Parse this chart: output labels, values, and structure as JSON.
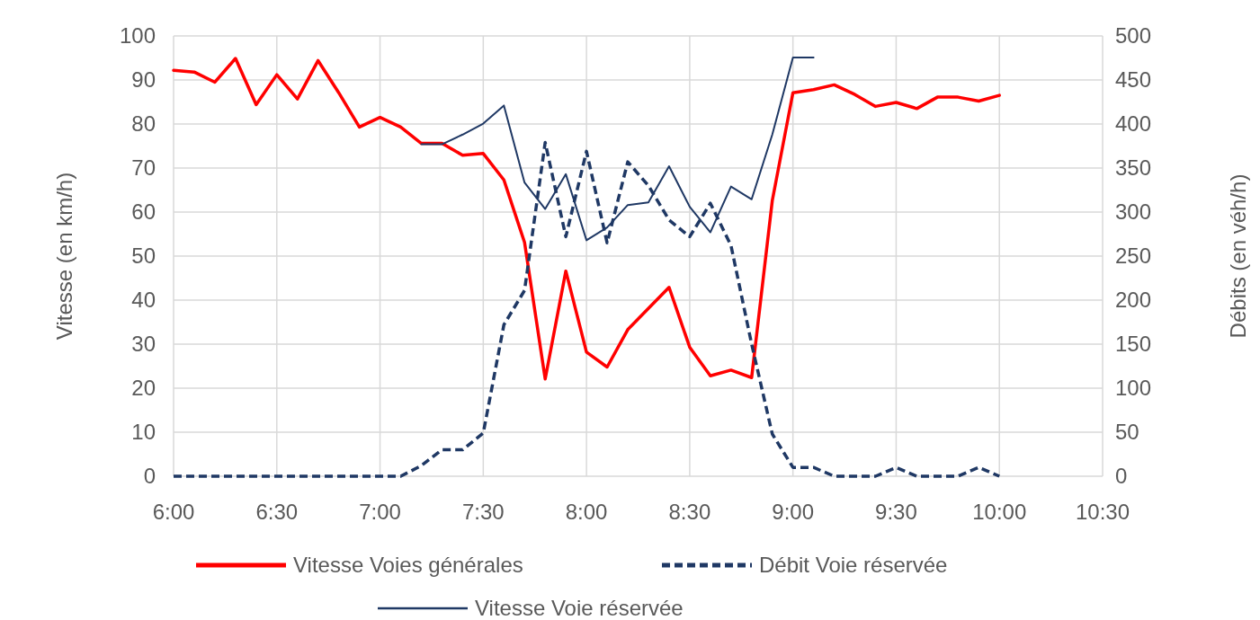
{
  "chart_data": {
    "type": "line",
    "ylabel": "Vitesse (en km/h)",
    "y2label": "Débits (en véh/h)",
    "x": [
      6.0,
      6.1,
      6.2,
      6.3,
      6.4,
      6.5,
      6.6,
      6.7,
      6.8,
      6.9,
      7.0,
      7.1,
      7.2,
      7.3,
      7.4,
      7.5,
      7.6,
      7.7,
      7.8,
      7.9,
      8.0,
      8.1,
      8.2,
      8.3,
      8.4,
      8.5,
      8.6,
      8.7,
      8.8,
      8.9,
      9.0,
      9.1,
      9.2,
      9.3,
      9.4,
      9.5,
      9.6,
      9.7,
      9.8,
      9.9,
      10.0
    ],
    "xlim": [
      6,
      10.5
    ],
    "xticks": [
      {
        "value": 6,
        "label": "6:00"
      },
      {
        "value": 6.5,
        "label": "6:30"
      },
      {
        "value": 7,
        "label": "7:00"
      },
      {
        "value": 7.5,
        "label": "7:30"
      },
      {
        "value": 8,
        "label": "8:00"
      },
      {
        "value": 8.5,
        "label": "8:30"
      },
      {
        "value": 9,
        "label": "9:00"
      },
      {
        "value": 9.5,
        "label": "9:30"
      },
      {
        "value": 10,
        "label": "10:00"
      },
      {
        "value": 10.5,
        "label": "10:30"
      }
    ],
    "ylim": [
      0,
      100
    ],
    "yticks": [
      0,
      10,
      20,
      30,
      40,
      50,
      60,
      70,
      80,
      90,
      100
    ],
    "y2lim": [
      0,
      500
    ],
    "y2ticks": [
      0,
      50,
      100,
      150,
      200,
      250,
      300,
      350,
      400,
      450,
      500
    ],
    "grid": true,
    "legend": "bottom",
    "marker": "none",
    "series": [
      {
        "name": "Vitesse Voies générales",
        "color": "#ff0000",
        "line_style": "solid",
        "values": [
          92.2,
          91.8,
          89.5,
          94.9,
          84.4,
          91.2,
          85.7,
          94.4,
          87.1,
          79.3,
          81.5,
          79.3,
          75.6,
          75.6,
          72.9,
          73.3,
          67.3,
          53.1,
          22.1,
          46.6,
          28.2,
          24.8,
          33.3,
          38.1,
          42.9,
          29.3,
          22.8,
          24.1,
          22.4,
          62.6,
          87.1,
          87.8,
          88.9,
          86.7,
          84.0,
          84.9,
          83.5,
          86.1,
          86.1,
          85.2,
          86.5
        ]
      },
      {
        "name": "Débit Voie réservée",
        "color": "#1f3864",
        "line_style": "dashed",
        "axis": "y2",
        "values": [
          0,
          0,
          0,
          0,
          0,
          0,
          0,
          0,
          0,
          0,
          0,
          0,
          12,
          30,
          30,
          49,
          172,
          211,
          379,
          272,
          369,
          265,
          357,
          330,
          291,
          272,
          310,
          262,
          150,
          48,
          10,
          10,
          0,
          0,
          0,
          10,
          0,
          0,
          0,
          10,
          0
        ]
      },
      {
        "name": "Vitesse Voie réservée",
        "color": "#1f3864",
        "line_style": "solid",
        "x": [
          7.2,
          7.3,
          7.4,
          7.5,
          7.6,
          7.7,
          7.8,
          7.9,
          8.0,
          8.1,
          8.2,
          8.3,
          8.4,
          8.5,
          8.6,
          8.7,
          8.8,
          8.9,
          9.0,
          9.1
        ],
        "values": [
          75.4,
          75.4,
          77.6,
          80.1,
          84.2,
          66.7,
          60.7,
          68.6,
          53.6,
          56.5,
          61.6,
          62.2,
          70.4,
          61.2,
          55.4,
          65.8,
          62.9,
          77.6,
          95.1,
          95.1
        ]
      }
    ]
  }
}
